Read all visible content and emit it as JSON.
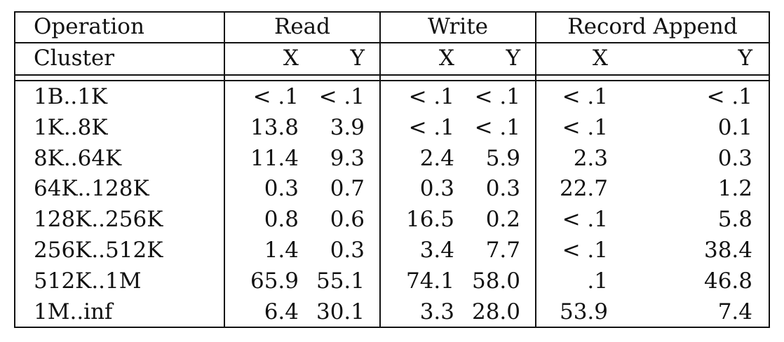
{
  "header": {
    "operation_label": "Operation",
    "cluster_label": "Cluster",
    "groups": [
      "Read",
      "Write",
      "Record Append"
    ],
    "sub": [
      "X",
      "Y",
      "X",
      "Y",
      "X",
      "Y"
    ]
  },
  "rows": [
    {
      "label": "1B..1K",
      "values": [
        "< .1",
        "< .1",
        "< .1",
        "< .1",
        "< .1",
        "< .1"
      ]
    },
    {
      "label": "1K..8K",
      "values": [
        "13.8",
        "3.9",
        "< .1",
        "< .1",
        "< .1",
        "0.1"
      ]
    },
    {
      "label": "8K..64K",
      "values": [
        "11.4",
        "9.3",
        "2.4",
        "5.9",
        "2.3",
        "0.3"
      ]
    },
    {
      "label": "64K..128K",
      "values": [
        "0.3",
        "0.7",
        "0.3",
        "0.3",
        "22.7",
        "1.2"
      ]
    },
    {
      "label": "128K..256K",
      "values": [
        "0.8",
        "0.6",
        "16.5",
        "0.2",
        "< .1",
        "5.8"
      ]
    },
    {
      "label": "256K..512K",
      "values": [
        "1.4",
        "0.3",
        "3.4",
        "7.7",
        "< .1",
        "38.4"
      ]
    },
    {
      "label": "512K..1M",
      "values": [
        "65.9",
        "55.1",
        "74.1",
        "58.0",
        ".1",
        "46.8"
      ]
    },
    {
      "label": "1M..inf",
      "values": [
        "6.4",
        "30.1",
        "3.3",
        "28.0",
        "53.9",
        "7.4"
      ]
    }
  ]
}
